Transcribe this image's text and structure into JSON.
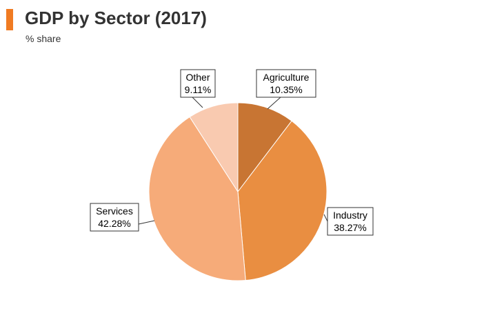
{
  "header": {
    "title": "GDP by Sector (2017)",
    "subtitle": "% share",
    "accent_color": "#F07B22"
  },
  "chart_data": {
    "type": "pie",
    "title": "GDP by Sector (2017)",
    "subtitle": "% share",
    "start": "top, clockwise",
    "slices": [
      {
        "label": "Agriculture",
        "value": 10.35,
        "value_label": "10.35%",
        "color": "#C87533"
      },
      {
        "label": "Industry",
        "value": 38.27,
        "value_label": "38.27%",
        "color": "#E98E41"
      },
      {
        "label": "Services",
        "value": 42.28,
        "value_label": "42.28%",
        "color": "#F6AB79"
      },
      {
        "label": "Other",
        "value": 9.11,
        "value_label": "9.11%",
        "color": "#F9CAB0"
      }
    ]
  }
}
